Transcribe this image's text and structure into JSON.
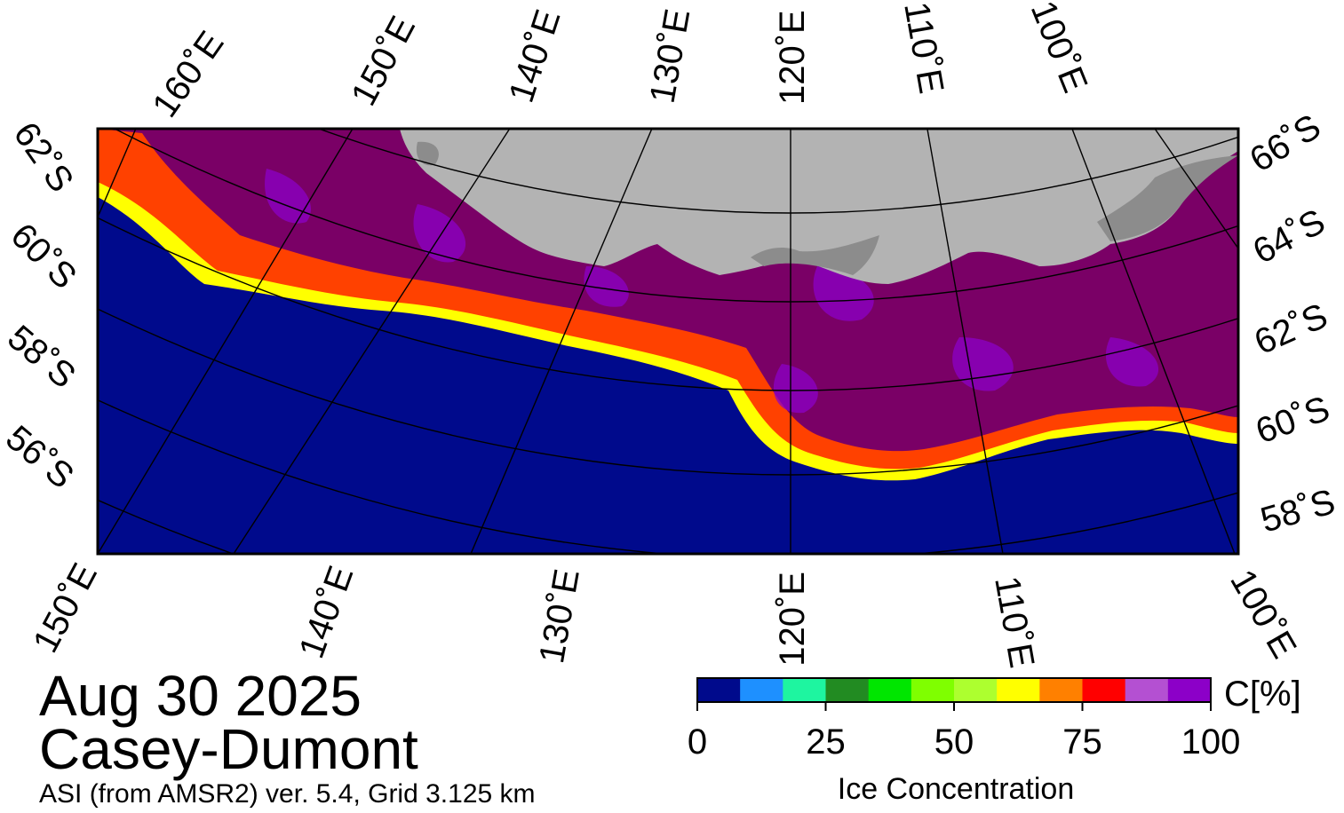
{
  "header": {
    "date": "Aug 30 2025",
    "region": "Casey-Dumont",
    "source": "ASI (from AMSR2) ver. 5.4,  Grid 3.125 km"
  },
  "map": {
    "top_lon_labels": [
      "160˚E",
      "150˚E",
      "140˚E",
      "130˚E",
      "120˚E",
      "110˚E",
      "100˚E"
    ],
    "bottom_lon_labels": [
      "150˚E",
      "140˚E",
      "130˚E",
      "120˚E",
      "110˚E",
      "100˚E"
    ],
    "left_lat_labels": [
      "62˚S",
      "60˚S",
      "58˚S",
      "56˚S"
    ],
    "right_lat_labels": [
      "66˚S",
      "64˚S",
      "62˚S",
      "60˚S",
      "58˚S"
    ],
    "colors": {
      "ocean": "#000a8c",
      "land": "#b3b3b3",
      "ice_shelf": "#8c8c8c",
      "pack_ice": "#7a0066"
    }
  },
  "colorbar": {
    "unit_label": "C[%]",
    "ticks": [
      "0",
      "25",
      "50",
      "75",
      "100"
    ],
    "title": "Ice Concentration",
    "colors": [
      "#000a8c",
      "#1e90ff",
      "#1ef5a0",
      "#228b22",
      "#00e600",
      "#7fff00",
      "#adff2f",
      "#ffff00",
      "#ff8000",
      "#ff0000",
      "#b450d2",
      "#8c00c8"
    ]
  }
}
